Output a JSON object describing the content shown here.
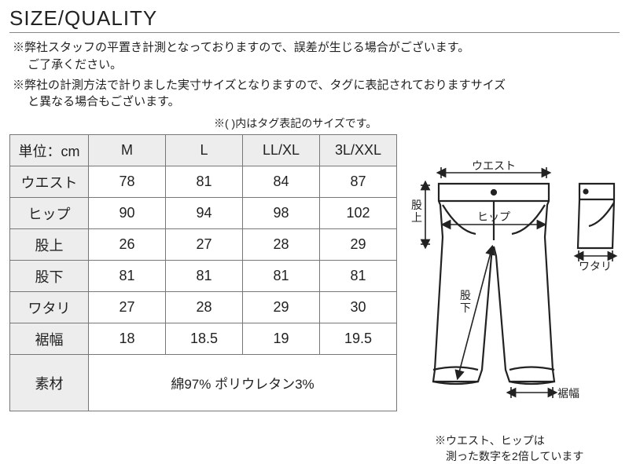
{
  "title": "SIZE/QUALITY",
  "notes": [
    "※弊社スタッフの平置き計測となっておりますので、誤差が生じる場合がございます。\n　 ご了承ください。",
    "※弊社の計測方法で計りました実寸サイズとなりますので、タグに表記されておりますサイズ\n　 と異なる場合もございます。"
  ],
  "tag_note": "※( )内はタグ表記のサイズです。",
  "table": {
    "unit_label": "単位：cm",
    "columns": [
      "M",
      "L",
      "LL/XL",
      "3L/XXL"
    ],
    "rows": [
      {
        "label": "ウエスト",
        "values": [
          "78",
          "81",
          "84",
          "87"
        ]
      },
      {
        "label": "ヒップ",
        "values": [
          "90",
          "94",
          "98",
          "102"
        ]
      },
      {
        "label": "股上",
        "values": [
          "26",
          "27",
          "28",
          "29"
        ]
      },
      {
        "label": "股下",
        "values": [
          "81",
          "81",
          "81",
          "81"
        ]
      },
      {
        "label": "ワタリ",
        "values": [
          "27",
          "28",
          "29",
          "30"
        ]
      },
      {
        "label": "裾幅",
        "values": [
          "18",
          "18.5",
          "19",
          "19.5"
        ]
      }
    ],
    "material_label": "素材",
    "material_value": "綿97% ポリウレタン3%"
  },
  "diagram": {
    "labels": {
      "waist": "ウエスト",
      "hip": "ヒップ",
      "rise": "股上",
      "inseam": "股下",
      "thigh": "ワタリ",
      "hem": "裾幅"
    },
    "footnote": "※ウエスト、ヒップは\n　測った数字を2倍しています",
    "stroke": "#222",
    "fill": "#fff"
  }
}
